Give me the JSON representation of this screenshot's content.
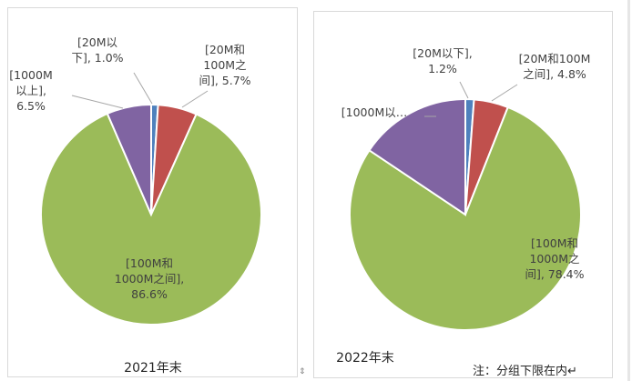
{
  "chart_data": [
    {
      "type": "pie",
      "caption": "2021年末",
      "labels": [
        [
          "[20M以",
          "下], 1.0%"
        ],
        [
          "[20M和",
          "100M之",
          "间], 5.7%"
        ],
        [
          "[100M和",
          "1000M之间],",
          "86.6%"
        ],
        [
          "[1000M",
          "以上],",
          "6.5%"
        ]
      ],
      "slices": [
        {
          "category": "[20M以下]",
          "value": 1.0,
          "color": "#4f81bd"
        },
        {
          "category": "[20M和100M之间]",
          "value": 5.7,
          "color": "#c0504d"
        },
        {
          "category": "[100M和1000M之间]",
          "value": 86.6,
          "color": "#9bbb59"
        },
        {
          "category": "[1000M以上]",
          "value": 6.5,
          "color": "#8064a2"
        }
      ]
    },
    {
      "type": "pie",
      "caption": "2022年末",
      "labels": [
        [
          "[20M以下],",
          "1.2%"
        ],
        [
          "[20M和100M",
          "之间], 4.8%"
        ],
        [
          "[100M和",
          "1000M之",
          "间], 78.4%"
        ],
        [
          "[1000M以…"
        ]
      ],
      "slices": [
        {
          "category": "[20M以下]",
          "value": 1.2,
          "color": "#4f81bd"
        },
        {
          "category": "[20M和100M之间]",
          "value": 4.8,
          "color": "#c0504d"
        },
        {
          "category": "[100M和1000M之间]",
          "value": 78.4,
          "color": "#9bbb59"
        },
        {
          "category": "[1000M以上]",
          "value": 15.6,
          "color": "#8064a2"
        }
      ]
    }
  ],
  "note": "注：分组下限在内↵"
}
